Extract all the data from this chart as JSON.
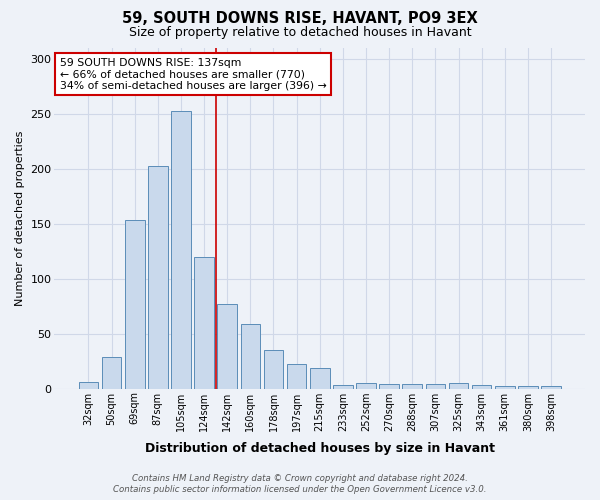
{
  "title": "59, SOUTH DOWNS RISE, HAVANT, PO9 3EX",
  "subtitle": "Size of property relative to detached houses in Havant",
  "xlabel": "Distribution of detached houses by size in Havant",
  "ylabel": "Number of detached properties",
  "categories": [
    "32sqm",
    "50sqm",
    "69sqm",
    "87sqm",
    "105sqm",
    "124sqm",
    "142sqm",
    "160sqm",
    "178sqm",
    "197sqm",
    "215sqm",
    "233sqm",
    "252sqm",
    "270sqm",
    "288sqm",
    "307sqm",
    "325sqm",
    "343sqm",
    "361sqm",
    "380sqm",
    "398sqm"
  ],
  "values": [
    6,
    29,
    153,
    202,
    252,
    120,
    77,
    59,
    35,
    22,
    19,
    3,
    5,
    4,
    4,
    4,
    5,
    3,
    2,
    2,
    2
  ],
  "bar_color": "#c9d9ec",
  "bar_edge_color": "#5b8db8",
  "vline_x": 5.5,
  "vline_color": "#cc0000",
  "annotation_title": "59 SOUTH DOWNS RISE: 137sqm",
  "annotation_line2": "← 66% of detached houses are smaller (770)",
  "annotation_line3": "34% of semi-detached houses are larger (396) →",
  "annotation_box_color": "#ffffff",
  "annotation_box_edge": "#cc0000",
  "ylim": [
    0,
    310
  ],
  "yticks": [
    0,
    50,
    100,
    150,
    200,
    250,
    300
  ],
  "grid_color": "#d0d8e8",
  "footer": "Contains HM Land Registry data © Crown copyright and database right 2024.\nContains public sector information licensed under the Open Government Licence v3.0.",
  "bg_color": "#eef2f8"
}
